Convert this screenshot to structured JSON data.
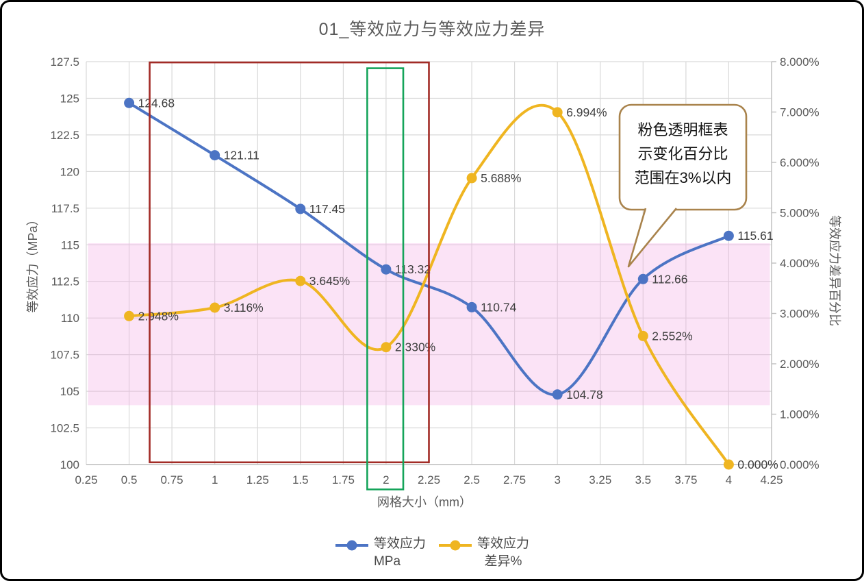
{
  "chart_data": {
    "type": "line",
    "title": "01_等效应力与等效应力差异",
    "xlabel": "网格大小（mm）",
    "ylabel_left": "等效应力（MPa）",
    "ylabel_right": "等效应力差异百分比",
    "grid": true,
    "legend_position": "bottom",
    "axes": {
      "x_min": 0.25,
      "x_max": 4.25,
      "y_left_min": 100,
      "y_left_max": 127.5,
      "y_right_min": 0,
      "y_right_max": 8
    },
    "x_tick_labels": [
      "0.25",
      "0.5",
      "0.75",
      "1",
      "1.25",
      "1.5",
      "1.75",
      "2",
      "2.25",
      "2.5",
      "2.75",
      "3",
      "3.25",
      "3.5",
      "3.75",
      "4",
      "4.25"
    ],
    "y_left_tick_labels": [
      "127.5",
      "125",
      "122.5",
      "120",
      "117.5",
      "115",
      "112.5",
      "110",
      "107.5",
      "105",
      "102.5",
      "100"
    ],
    "y_right_tick_labels": [
      "8.000%",
      "7.000%",
      "6.000%",
      "5.000%",
      "4.000%",
      "3.000%",
      "2.000%",
      "1.000%",
      "0.000%"
    ],
    "x": [
      0.5,
      1,
      1.5,
      2,
      2.5,
      3,
      3.5,
      4
    ],
    "series": [
      {
        "id": "stress",
        "name": "等效应力 MPa",
        "axis": "left",
        "color": "#4C74C4",
        "values": [
          124.68,
          121.11,
          117.45,
          113.32,
          110.74,
          104.78,
          112.66,
          115.61
        ],
        "labels": [
          "124.68",
          "121.11",
          "117.45",
          "113.32",
          "110.74",
          "104.78",
          "112.66",
          "115.61"
        ]
      },
      {
        "id": "diff",
        "name": "等效应力 差异%",
        "axis": "right",
        "color": "#EFB521",
        "values": [
          2.948,
          3.116,
          3.645,
          2.33,
          5.688,
          6.994,
          2.552,
          0
        ],
        "labels": [
          "2.948%",
          "3.116%",
          "3.645%",
          "2.330%",
          "5.688%",
          "6.994%",
          "2.552%",
          "0.000%"
        ]
      }
    ],
    "annotations": {
      "pink_band": {
        "x1": 0.26,
        "x2": 4.24,
        "y_left_min": 104.05,
        "y_left_max": 115.1,
        "color": "#F2A9E3",
        "opacity": 0.33
      },
      "red_box": {
        "x1": 0.62,
        "x2": 2.25,
        "y_left_min": 100.15,
        "y_left_max": 127.45,
        "color": "#A22B26"
      },
      "green_box": {
        "x1": 1.89,
        "x2": 2.1,
        "y_left_min": 98.3,
        "y_left_max": 127.05,
        "color": "#15A45A"
      },
      "callout": {
        "lines": [
          "粉色透明框表",
          "示变化百分比",
          "范围在3%以内"
        ],
        "border_color": "#A9834C"
      }
    },
    "legend": [
      {
        "line1": "等效应力",
        "line2": "MPa",
        "color": "#4C74C4"
      },
      {
        "line1": "等效应力",
        "line2": "差异%",
        "color": "#EFB521"
      }
    ],
    "style": {
      "text_color": "#595959",
      "data_label_color": "#3F3F3F",
      "gridline_color": "#D9D9D9",
      "axis_line_color": "#BFBFBF"
    }
  }
}
